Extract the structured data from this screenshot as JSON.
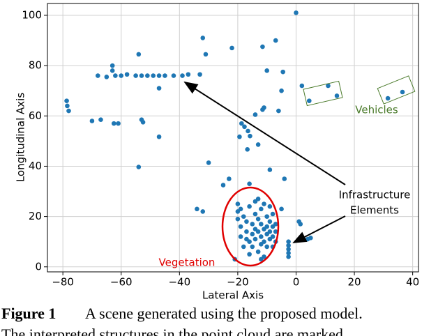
{
  "chart_data": {
    "type": "scatter",
    "x_label": "Lateral Axis",
    "y_label": "Longitudinal Axis",
    "color": "#1f77b4",
    "grid": true,
    "xlim": [
      -85.3,
      42
    ],
    "ylim": [
      -2,
      104.7
    ],
    "xticks": [
      {
        "value": -80,
        "label": "−80"
      },
      {
        "value": -60,
        "label": "−60"
      },
      {
        "value": -40,
        "label": "−40"
      },
      {
        "value": -20,
        "label": "−20"
      },
      0,
      20,
      40
    ],
    "yticks": [
      0,
      20,
      40,
      60,
      80,
      100
    ],
    "x": [
      0,
      -32,
      -31,
      -22,
      -11.5,
      -7,
      -10,
      -4.5,
      -54,
      -68,
      -65,
      -62,
      -60,
      -58,
      -55,
      -53,
      -51,
      -49,
      -47,
      -45,
      -42,
      -39,
      -37,
      -63,
      -63,
      -47,
      -33,
      -5,
      -78.7,
      -78.5,
      -78,
      -70,
      -67,
      -62.5,
      -61,
      -53,
      -52.5,
      -47,
      -54,
      -30,
      -18.7,
      -17.7,
      -16.5,
      -15.8,
      -19.4,
      -16.7,
      -13,
      -14,
      -11,
      -11.5,
      -6,
      -9,
      -4,
      -25,
      -23,
      -16,
      -34,
      -32,
      -5,
      1,
      1.5,
      4,
      5,
      -2.6,
      -2.6,
      -2.6,
      -2.6,
      -2.6,
      2,
      4.5,
      11,
      14,
      31.5,
      36.5,
      -20,
      -20,
      -20,
      -19,
      -19,
      -18,
      -17,
      -17,
      -16,
      -16,
      -15,
      -15,
      -15,
      -14,
      -14,
      -14,
      -14,
      -13,
      -13,
      -13,
      -12,
      -12,
      -12,
      -12,
      -11,
      -11,
      -11,
      -11,
      -10,
      -10,
      -10,
      -10,
      -9,
      -9,
      -9,
      -9,
      -8,
      -8,
      -8,
      -8,
      -7,
      -7,
      -7,
      -18,
      -16,
      -12,
      -21,
      -13,
      -19,
      -17
    ],
    "values": [
      101,
      91,
      84.5,
      87,
      87.5,
      90,
      78,
      77.5,
      84.5,
      76,
      75.5,
      76,
      76,
      76.5,
      76,
      76,
      76,
      76,
      76,
      76,
      76,
      76,
      76.5,
      80,
      78,
      71,
      76.5,
      70,
      66,
      64,
      62,
      58,
      58.5,
      57,
      57,
      58.5,
      57.5,
      51.7,
      39.7,
      41.4,
      57,
      55.7,
      54,
      52,
      51.7,
      46.7,
      48.6,
      60.5,
      63.3,
      62.5,
      62,
      38.6,
      35,
      32.5,
      35,
      33,
      23,
      22,
      23,
      18,
      17,
      11,
      11.5,
      10,
      8.5,
      7,
      5.5,
      4,
      72,
      66,
      72,
      68,
      67,
      69.5,
      25,
      22,
      19,
      16,
      12,
      20,
      18,
      14,
      24,
      10,
      17,
      13,
      8,
      26,
      21,
      15,
      11,
      19,
      14,
      6,
      23,
      17,
      12,
      9,
      25,
      15,
      10,
      4,
      20,
      16,
      13,
      8,
      24,
      18,
      14,
      11,
      21,
      16,
      12,
      8,
      17,
      14,
      10,
      8,
      5,
      3,
      3,
      27,
      23,
      11
    ],
    "annotations": [
      {
        "text": "Vehicles"
      },
      {
        "text": "Infrastructure"
      },
      {
        "text": "Elements"
      },
      {
        "text": "Vegetation"
      }
    ]
  },
  "caption": {
    "label": "Figure 1",
    "text": "A scene generated using the proposed model.",
    "next_line": "The interpreted structures in the point cloud are marked."
  }
}
